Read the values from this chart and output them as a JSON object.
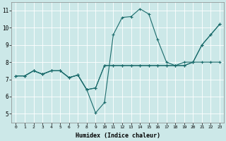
{
  "xlabel": "Humidex (Indice chaleur)",
  "bg_color": "#cce8e8",
  "line_color": "#1a6b6b",
  "grid_color": "#b8d8d8",
  "xlim": [
    -0.5,
    23.5
  ],
  "ylim": [
    4.5,
    11.5
  ],
  "xticks": [
    0,
    1,
    2,
    3,
    4,
    5,
    6,
    7,
    8,
    9,
    10,
    11,
    12,
    13,
    14,
    15,
    16,
    17,
    18,
    19,
    20,
    21,
    22,
    23
  ],
  "yticks": [
    5,
    6,
    7,
    8,
    9,
    10,
    11
  ],
  "series1_x": [
    0,
    1,
    2,
    3,
    4,
    5,
    6,
    7,
    8,
    9,
    10,
    11,
    12,
    13,
    14,
    15,
    16,
    17,
    18,
    19,
    20,
    21,
    22,
    23
  ],
  "series1_y": [
    7.2,
    7.2,
    7.5,
    7.3,
    7.5,
    7.5,
    7.1,
    7.25,
    6.4,
    5.05,
    5.65,
    9.6,
    10.6,
    10.65,
    11.1,
    10.8,
    9.3,
    8.0,
    7.8,
    8.0,
    8.0,
    9.0,
    9.6,
    10.2
  ],
  "series2_x": [
    0,
    1,
    2,
    3,
    4,
    5,
    6,
    7,
    8,
    9,
    10,
    11,
    12,
    13,
    14,
    15,
    16,
    17,
    18,
    19,
    20,
    21,
    22,
    23
  ],
  "series2_y": [
    7.2,
    7.2,
    7.5,
    7.3,
    7.5,
    7.5,
    7.1,
    7.25,
    6.4,
    6.5,
    7.8,
    7.8,
    7.8,
    7.8,
    7.8,
    7.8,
    7.8,
    7.8,
    7.8,
    7.8,
    8.0,
    8.0,
    8.0,
    8.0
  ],
  "series3_x": [
    0,
    1,
    2,
    3,
    4,
    5,
    6,
    7,
    8,
    9,
    10,
    11,
    12,
    13,
    14,
    15,
    16,
    17,
    18,
    19,
    20,
    21,
    22,
    23
  ],
  "series3_y": [
    7.2,
    7.2,
    7.5,
    7.3,
    7.5,
    7.5,
    7.1,
    7.25,
    6.4,
    6.5,
    7.8,
    7.8,
    7.8,
    7.8,
    7.8,
    7.8,
    7.8,
    7.8,
    7.8,
    7.8,
    8.0,
    9.0,
    9.6,
    10.2
  ]
}
